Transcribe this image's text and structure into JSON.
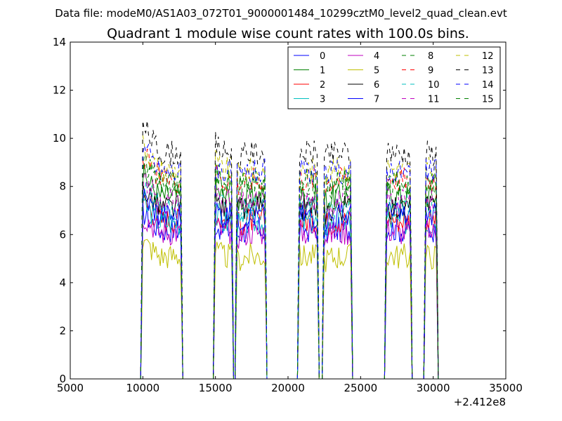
{
  "chart_data": {
    "type": "line",
    "suptitle": "Data file: modeM0/AS1A03_072T01_9000001484_10299cztM0_level2_quad_clean.evt",
    "title": "Quadrant 1 module wise count rates with 100.0s bins.",
    "xlabel": "",
    "ylabel": "",
    "x_offset_label": "+2.412e8",
    "xlim": [
      5000,
      35000
    ],
    "ylim": [
      0,
      14
    ],
    "xticks": [
      {
        "value": 5000,
        "label": "5000"
      },
      {
        "value": 10000,
        "label": "10000"
      },
      {
        "value": 15000,
        "label": "15000"
      },
      {
        "value": 20000,
        "label": "20000"
      },
      {
        "value": 25000,
        "label": "25000"
      },
      {
        "value": 30000,
        "label": "30000"
      },
      {
        "value": 35000,
        "label": "35000"
      }
    ],
    "yticks": [
      {
        "value": 0,
        "label": "0"
      },
      {
        "value": 2,
        "label": "2"
      },
      {
        "value": 4,
        "label": "4"
      },
      {
        "value": 6,
        "label": "6"
      },
      {
        "value": 8,
        "label": "8"
      },
      {
        "value": 10,
        "label": "10"
      },
      {
        "value": 12,
        "label": "12"
      },
      {
        "value": 14,
        "label": "14"
      }
    ],
    "grid": false,
    "legend_position": "upper-right",
    "legend_columns": 4,
    "time_segments": [
      {
        "start": 9900,
        "end": 12700,
        "peak": 1.13
      },
      {
        "start": 14900,
        "end": 16200,
        "peak": 1.05
      },
      {
        "start": 16400,
        "end": 18500,
        "peak": 0.97
      },
      {
        "start": 20700,
        "end": 22100,
        "peak": 1.0
      },
      {
        "start": 22400,
        "end": 24400,
        "peak": 0.97
      },
      {
        "start": 26700,
        "end": 28500,
        "peak": 1.02
      },
      {
        "start": 29400,
        "end": 30300,
        "peak": 1.0
      }
    ],
    "series": [
      {
        "name": "0",
        "color": "#0000ff",
        "dash": "solid",
        "level": 6.2
      },
      {
        "name": "1",
        "color": "#008000",
        "dash": "solid",
        "level": 7.6
      },
      {
        "name": "2",
        "color": "#ff0000",
        "dash": "solid",
        "level": 6.6
      },
      {
        "name": "3",
        "color": "#00bfbf",
        "dash": "solid",
        "level": 6.5
      },
      {
        "name": "4",
        "color": "#bf00bf",
        "dash": "solid",
        "level": 6.1
      },
      {
        "name": "5",
        "color": "#bfbf00",
        "dash": "solid",
        "level": 5.1
      },
      {
        "name": "6",
        "color": "#000000",
        "dash": "solid",
        "level": 7.1
      },
      {
        "name": "7",
        "color": "#0000ff",
        "dash": "solid",
        "level": 6.8
      },
      {
        "name": "8",
        "color": "#008000",
        "dash": "dashed",
        "level": 8.1
      },
      {
        "name": "9",
        "color": "#ff0000",
        "dash": "dashed",
        "level": 8.3
      },
      {
        "name": "10",
        "color": "#00bfbf",
        "dash": "dashed",
        "level": 7.1
      },
      {
        "name": "11",
        "color": "#bf00bf",
        "dash": "dashed",
        "level": 7.4
      },
      {
        "name": "12",
        "color": "#bfbf00",
        "dash": "dashed",
        "level": 8.7
      },
      {
        "name": "13",
        "color": "#000000",
        "dash": "dashed",
        "level": 9.4
      },
      {
        "name": "14",
        "color": "#0000ff",
        "dash": "dashed",
        "level": 8.6
      },
      {
        "name": "15",
        "color": "#008000",
        "dash": "dashed",
        "level": 8.2
      }
    ]
  }
}
